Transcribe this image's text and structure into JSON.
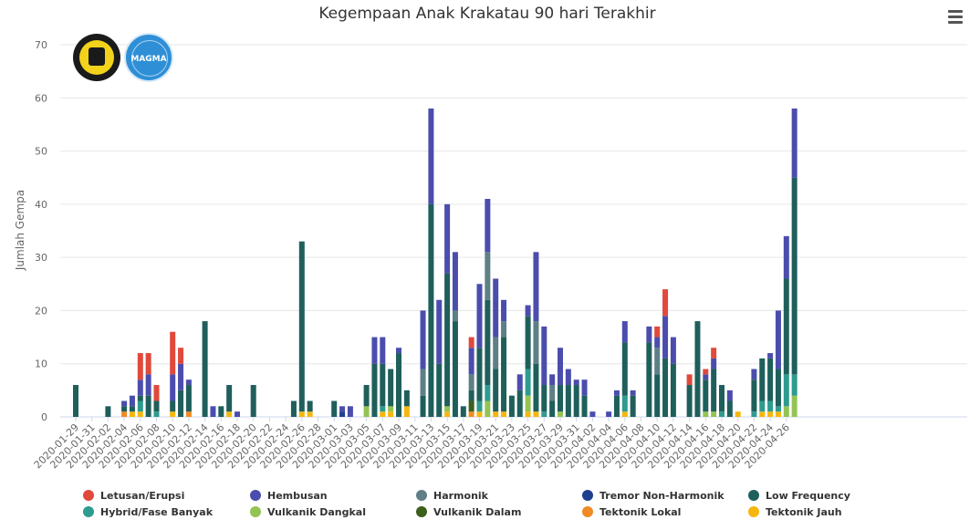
{
  "chart_data": {
    "type": "bar",
    "stacked": true,
    "title": "Kegempaan Anak Krakatau 90 hari Terakhir",
    "ylabel": "Jumlah Gempa",
    "ylim": [
      0,
      70
    ],
    "yticks": [
      0,
      10,
      20,
      30,
      40,
      50,
      60,
      70
    ],
    "grid": true,
    "legend_position": "bottom",
    "x_start": "2020-01-29",
    "x_end": "2020-04-27",
    "xtick_labels": [
      "2020-01-29",
      "2020-01-31",
      "2020-02-02",
      "2020-02-04",
      "2020-02-06",
      "2020-02-08",
      "2020-02-10",
      "2020-02-12",
      "2020-02-14",
      "2020-02-16",
      "2020-02-18",
      "2020-02-20",
      "2020-02-22",
      "2020-02-24",
      "2020-02-26",
      "2020-02-28",
      "2020-03-01",
      "2020-03-03",
      "2020-03-05",
      "2020-03-07",
      "2020-03-09",
      "2020-03-11",
      "2020-03-13",
      "2020-03-15",
      "2020-03-17",
      "2020-03-19",
      "2020-03-21",
      "2020-03-23",
      "2020-03-25",
      "2020-03-27",
      "2020-03-29",
      "2020-03-31",
      "2020-04-02",
      "2020-04-04",
      "2020-04-06",
      "2020-04-08",
      "2020-04-10",
      "2020-04-12",
      "2020-04-14",
      "2020-04-16",
      "2020-04-18",
      "2020-04-20",
      "2020-04-22",
      "2020-04-24",
      "2020-04-26"
    ],
    "series": [
      {
        "name": "Tektonik Jauh",
        "color": "#f5b70d",
        "points": {
          "2020-02-05": 1,
          "2020-02-06": 1,
          "2020-02-10": 1,
          "2020-02-17": 1,
          "2020-02-26": 1,
          "2020-02-27": 1,
          "2020-03-07": 1,
          "2020-03-08": 1,
          "2020-03-10": 2,
          "2020-03-15": 1,
          "2020-03-19": 1,
          "2020-03-21": 1,
          "2020-03-22": 1,
          "2020-03-25": 1,
          "2020-03-26": 1,
          "2020-04-06": 1,
          "2020-04-20": 1,
          "2020-04-23": 1,
          "2020-04-24": 1,
          "2020-04-25": 1
        }
      },
      {
        "name": "Tektonik Lokal",
        "color": "#f08a24",
        "points": {
          "2020-02-04": 1,
          "2020-02-12": 1,
          "2020-03-18": 1
        }
      },
      {
        "name": "Vulkanik Dalam",
        "color": "#3b5f1c",
        "points": {
          "2020-03-18": 2
        }
      },
      {
        "name": "Vulkanik Dangkal",
        "color": "#94c353",
        "points": {
          "2020-03-05": 2,
          "2020-03-08": 1,
          "2020-03-15": 1,
          "2020-03-20": 3,
          "2020-03-25": 3,
          "2020-03-29": 1,
          "2020-04-16": 1,
          "2020-04-17": 1,
          "2020-04-26": 2,
          "2020-04-27": 4
        }
      },
      {
        "name": "Hybrid/Fase Banyak",
        "color": "#2e9b8f",
        "points": {
          "2020-02-06": 2,
          "2020-02-08": 1,
          "2020-03-07": 1,
          "2020-03-19": 2,
          "2020-03-20": 3,
          "2020-03-25": 5,
          "2020-03-27": 1,
          "2020-04-06": 3,
          "2020-04-18": 1,
          "2020-04-22": 1,
          "2020-04-23": 2,
          "2020-04-24": 2,
          "2020-04-25": 1,
          "2020-04-26": 6,
          "2020-04-27": 4
        }
      },
      {
        "name": "Low Frequency",
        "color": "#1f5f5b",
        "points": {
          "2020-01-29": 6,
          "2020-02-02": 2,
          "2020-02-04": 1,
          "2020-02-05": 1,
          "2020-02-06": 1,
          "2020-02-07": 4,
          "2020-02-08": 2,
          "2020-02-10": 2,
          "2020-02-11": 5,
          "2020-02-12": 5,
          "2020-02-14": 18,
          "2020-02-16": 2,
          "2020-02-17": 5,
          "2020-02-20": 6,
          "2020-02-25": 3,
          "2020-02-26": 32,
          "2020-02-27": 2,
          "2020-03-01": 3,
          "2020-03-05": 4,
          "2020-03-06": 10,
          "2020-03-07": 8,
          "2020-03-08": 7,
          "2020-03-09": 12,
          "2020-03-10": 3,
          "2020-03-12": 4,
          "2020-03-13": 40,
          "2020-03-14": 10,
          "2020-03-15": 25,
          "2020-03-16": 18,
          "2020-03-17": 2,
          "2020-03-18": 2,
          "2020-03-19": 10,
          "2020-03-20": 16,
          "2020-03-21": 8,
          "2020-03-22": 14,
          "2020-03-23": 4,
          "2020-03-24": 5,
          "2020-03-25": 10,
          "2020-03-26": 9,
          "2020-03-27": 5,
          "2020-03-28": 3,
          "2020-03-29": 5,
          "2020-03-30": 6,
          "2020-03-31": 6,
          "2020-04-01": 4,
          "2020-04-05": 4,
          "2020-04-06": 10,
          "2020-04-07": 4,
          "2020-04-09": 14,
          "2020-04-10": 8,
          "2020-04-11": 11,
          "2020-04-12": 10,
          "2020-04-14": 6,
          "2020-04-15": 18,
          "2020-04-16": 6,
          "2020-04-17": 8,
          "2020-04-18": 5,
          "2020-04-19": 3,
          "2020-04-22": 6,
          "2020-04-23": 8,
          "2020-04-24": 8,
          "2020-04-25": 7,
          "2020-04-26": 18,
          "2020-04-27": 37
        }
      },
      {
        "name": "Tremor Non-Harmonik",
        "color": "#1f3f8f",
        "points": {
          "2020-03-02": 1
        }
      },
      {
        "name": "Harmonik",
        "color": "#5e7f86",
        "points": {
          "2020-03-12": 5,
          "2020-03-16": 2,
          "2020-03-18": 3,
          "2020-03-20": 9,
          "2020-03-21": 6,
          "2020-03-22": 3,
          "2020-03-26": 8,
          "2020-03-28": 3,
          "2020-04-10": 5
        }
      },
      {
        "name": "Hembusan",
        "color": "#4b4dad",
        "points": {
          "2020-02-04": 1,
          "2020-02-05": 2,
          "2020-02-06": 3,
          "2020-02-07": 4,
          "2020-02-10": 5,
          "2020-02-11": 5,
          "2020-02-12": 1,
          "2020-02-15": 2,
          "2020-02-18": 1,
          "2020-03-02": 1,
          "2020-03-03": 2,
          "2020-03-06": 5,
          "2020-03-07": 5,
          "2020-03-09": 1,
          "2020-03-12": 11,
          "2020-03-13": 18,
          "2020-03-14": 12,
          "2020-03-15": 13,
          "2020-03-16": 11,
          "2020-03-18": 5,
          "2020-03-19": 12,
          "2020-03-20": 10,
          "2020-03-21": 11,
          "2020-03-22": 4,
          "2020-03-24": 3,
          "2020-03-25": 2,
          "2020-03-26": 13,
          "2020-03-27": 11,
          "2020-03-28": 2,
          "2020-03-29": 7,
          "2020-03-30": 3,
          "2020-03-31": 1,
          "2020-04-01": 3,
          "2020-04-02": 1,
          "2020-04-04": 1,
          "2020-04-05": 1,
          "2020-04-06": 4,
          "2020-04-07": 1,
          "2020-04-09": 3,
          "2020-04-10": 2,
          "2020-04-11": 8,
          "2020-04-12": 5,
          "2020-04-16": 1,
          "2020-04-17": 2,
          "2020-04-19": 2,
          "2020-04-22": 2,
          "2020-04-24": 1,
          "2020-04-25": 11,
          "2020-04-26": 8,
          "2020-04-27": 13
        }
      },
      {
        "name": "Letusan/Erupsi",
        "color": "#e0493b",
        "points": {
          "2020-02-06": 5,
          "2020-02-07": 4,
          "2020-02-08": 3,
          "2020-02-10": 8,
          "2020-02-11": 3,
          "2020-03-18": 2,
          "2020-04-10": 2,
          "2020-04-11": 5,
          "2020-04-14": 2,
          "2020-04-16": 1,
          "2020-04-17": 2
        }
      }
    ],
    "legend_order": [
      "Letusan/Erupsi",
      "Hembusan",
      "Harmonik",
      "Tremor Non-Harmonik",
      "Low Frequency",
      "Hybrid/Fase Banyak",
      "Vulkanik Dangkal",
      "Vulkanik Dalam",
      "Tektonik Lokal",
      "Tektonik Jauh"
    ]
  },
  "icons": {
    "menu": "hamburger-menu-icon",
    "logo_left": "esdm-logo",
    "logo_right": "magma-logo"
  },
  "logos": {
    "magma_text": "MAGMA"
  }
}
